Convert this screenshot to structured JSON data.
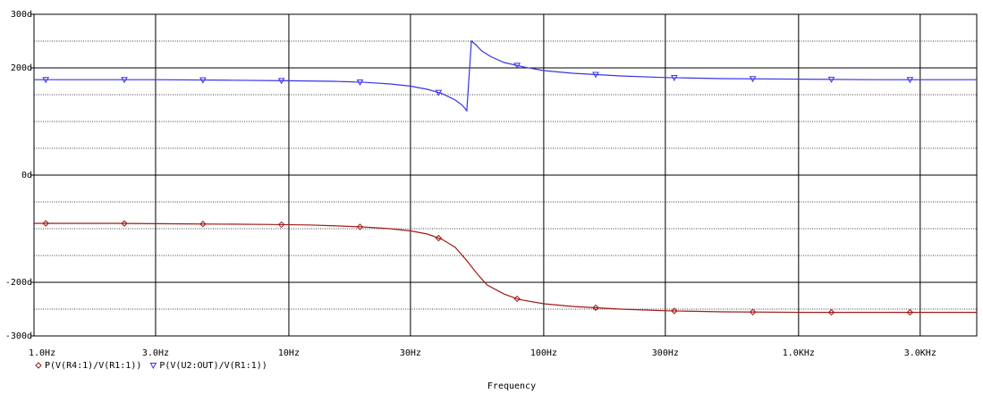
{
  "chart_data": {
    "type": "line",
    "title": "",
    "xlabel": "Frequency",
    "ylabel": "",
    "x_scale": "log",
    "xlim": [
      1,
      5000
    ],
    "ylim": [
      -300,
      300
    ],
    "x_ticks": [
      {
        "value": 1,
        "label": "1.0Hz"
      },
      {
        "value": 3,
        "label": "3.0Hz"
      },
      {
        "value": 10,
        "label": "10Hz"
      },
      {
        "value": 30,
        "label": "30Hz"
      },
      {
        "value": 100,
        "label": "100Hz"
      },
      {
        "value": 300,
        "label": "300Hz"
      },
      {
        "value": 1000,
        "label": "1.0KHz"
      },
      {
        "value": 3000,
        "label": "3.0KHz"
      }
    ],
    "y_ticks": [
      {
        "value": 300,
        "label": "300d"
      },
      {
        "value": 200,
        "label": "200d"
      },
      {
        "value": 0,
        "label": "0d"
      },
      {
        "value": -200,
        "label": "-200d"
      },
      {
        "value": -300,
        "label": "-300d"
      }
    ],
    "grid": true,
    "legend_position": "bottom-left",
    "series": [
      {
        "name": "P(V(R4:1)/V(R1:1))",
        "color": "#a01818",
        "marker": "diamond",
        "x": [
          1,
          2,
          4,
          8,
          12,
          16,
          20,
          25,
          30,
          35,
          40,
          45,
          50,
          55,
          60,
          70,
          80,
          100,
          130,
          200,
          300,
          500,
          1000,
          2000,
          5000
        ],
        "y": [
          -90,
          -90,
          -91,
          -92,
          -93,
          -95,
          -97,
          -100,
          -104,
          -110,
          -120,
          -135,
          -160,
          -185,
          -205,
          -222,
          -232,
          -240,
          -245,
          -250,
          -253,
          -255,
          -256,
          -256,
          -256
        ]
      },
      {
        "name": "P(V(U2:OUT)/V(R1:1))",
        "color": "#3a34e8",
        "marker": "triangle",
        "x": [
          1,
          3,
          6,
          10,
          15,
          20,
          25,
          30,
          35,
          40,
          45,
          48,
          49.9,
          52,
          54,
          57,
          62,
          70,
          85,
          100,
          130,
          200,
          300,
          500,
          1000,
          2000,
          5000
        ],
        "y": [
          178,
          178,
          177,
          176,
          175,
          173,
          170,
          166,
          160,
          152,
          140,
          130,
          120,
          250,
          244,
          232,
          221,
          210,
          201,
          195,
          190,
          185,
          182,
          180,
          179,
          178,
          178
        ]
      }
    ]
  }
}
